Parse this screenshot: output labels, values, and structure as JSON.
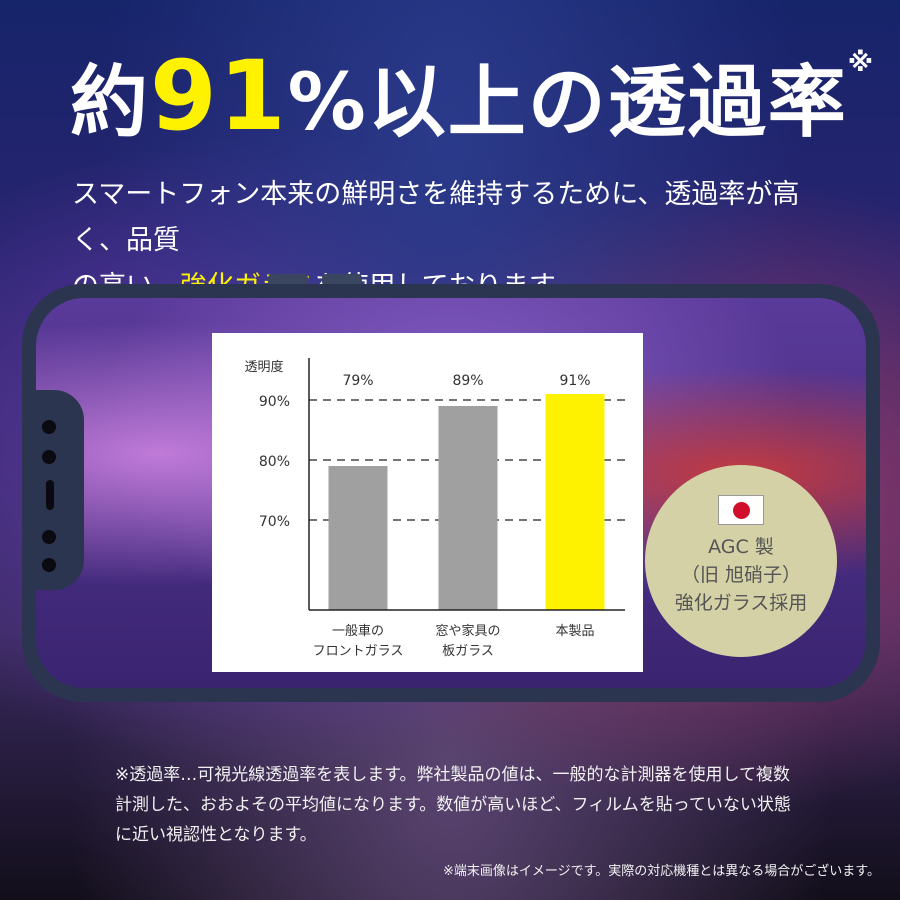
{
  "title": {
    "prefix": "約",
    "number": "91",
    "suffix": "%以上の透過率",
    "mark": "※"
  },
  "subtitle": {
    "line1": "スマートフォン本来の鮮明さを維持するために、透過率が高く、品質",
    "line2_before": "の高い、",
    "line2_highlight": "強化ガラス",
    "line2_after": "を使用しております。"
  },
  "badge": {
    "flag_icon": "japan-flag-icon",
    "line1": "AGC 製",
    "line2": "（旧 旭硝子）",
    "line3": "強化ガラス採用"
  },
  "notes": {
    "main": "※透過率…可視光線透過率を表します。弊社製品の値は、一般的な計測器を使用して複数計測した、おおよその平均値になります。数値が高いほど、フィルムを貼っていない状態に近い視認性となります。",
    "disclaimer": "※端末画像はイメージです。実際の対応機種とは異なる場合がございます。"
  },
  "colors": {
    "accent": "#fff200",
    "bar_gray": "#a0a0a0",
    "bar_highlight": "#fff200",
    "badge_bg": "#d4d1a6"
  },
  "chart_data": {
    "type": "bar",
    "ylabel": "透明度",
    "categories": [
      [
        "一般車の",
        "フロントガラス"
      ],
      [
        "窓や家具の",
        "板ガラス"
      ],
      [
        "本製品"
      ]
    ],
    "values": [
      79,
      89,
      91
    ],
    "data_labels": [
      "79%",
      "89%",
      "91%"
    ],
    "yticks": [
      {
        "value": 70,
        "label": "70%"
      },
      {
        "value": 80,
        "label": "80%"
      },
      {
        "value": 90,
        "label": "90%"
      }
    ],
    "ylim": [
      55,
      97
    ],
    "grid": "dashed-horizontal",
    "highlight_index": 2
  }
}
